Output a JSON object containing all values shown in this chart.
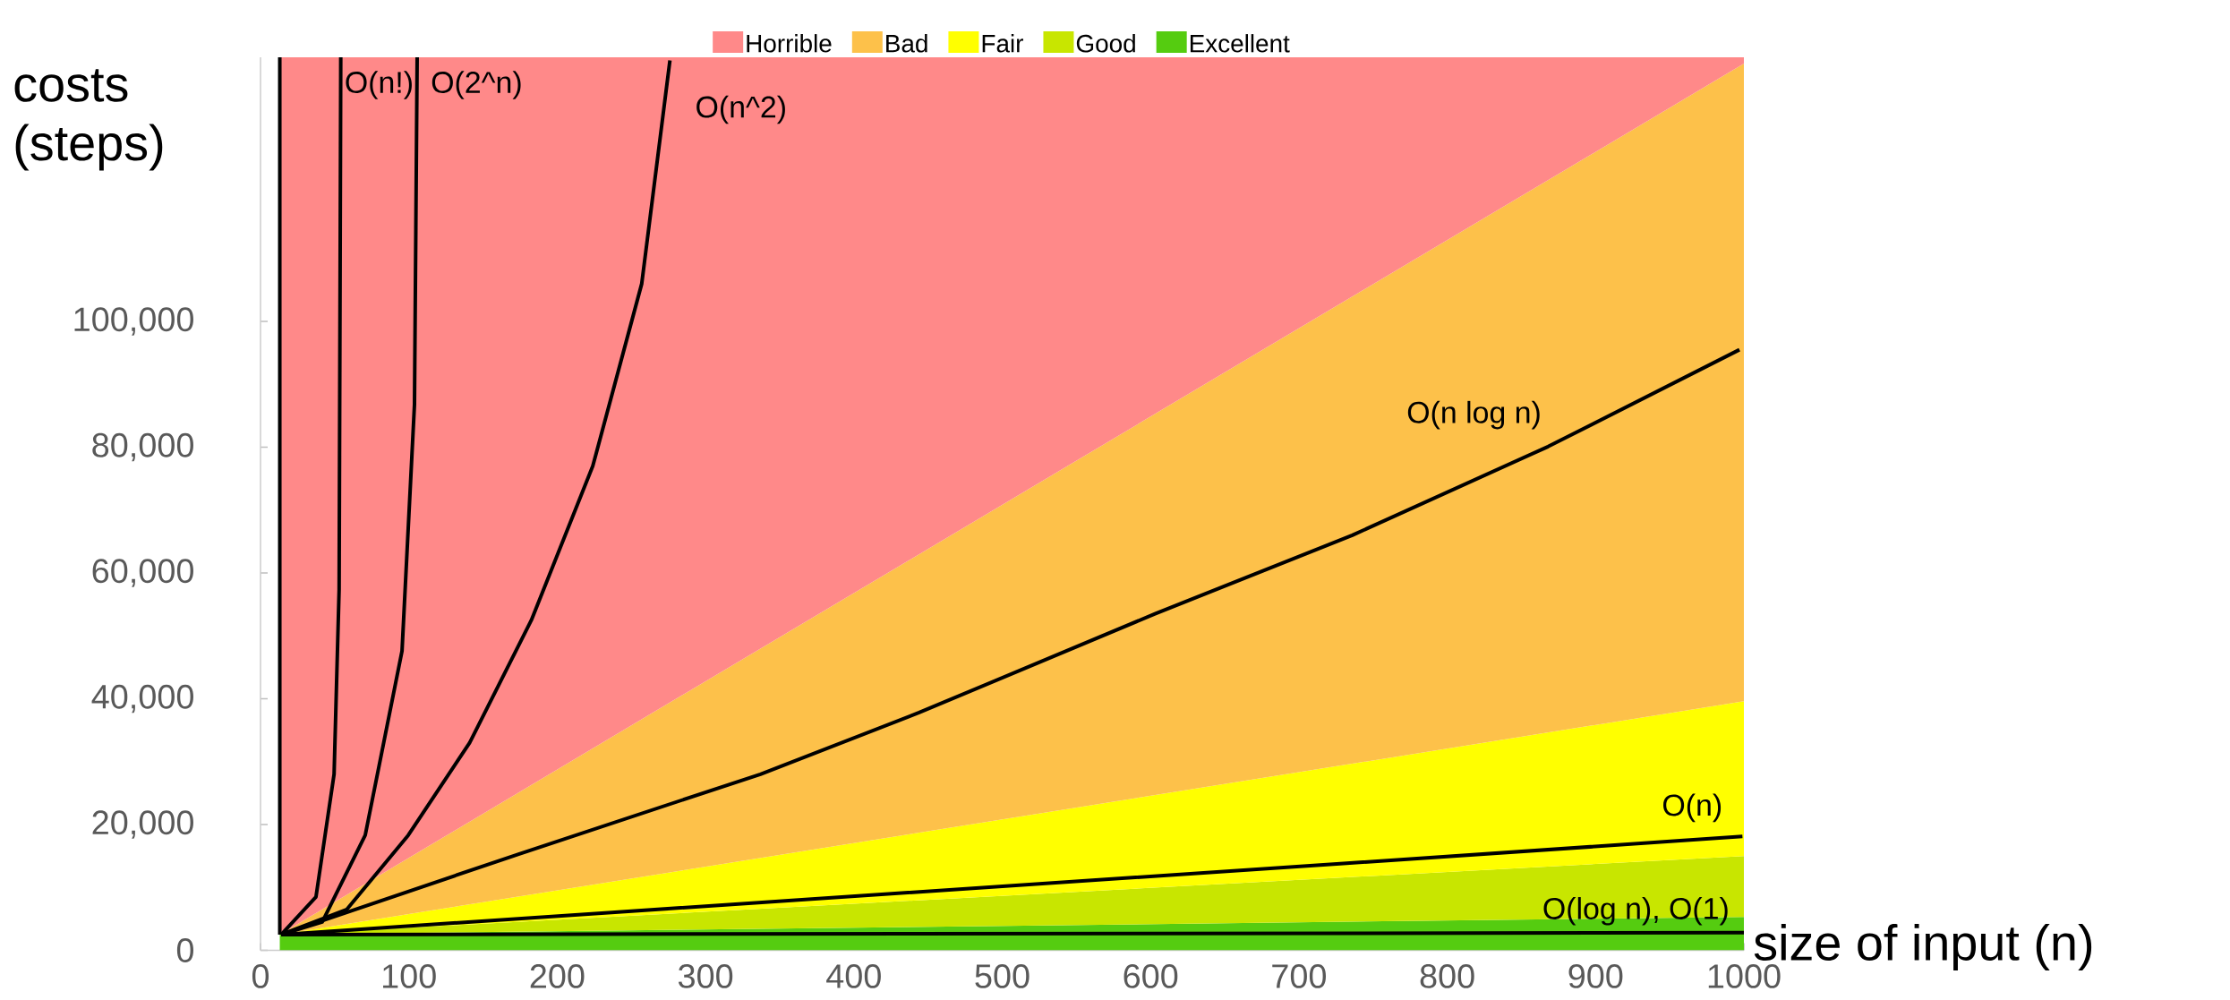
{
  "chart_data": {
    "type": "line",
    "xlabel": "size of input (n)",
    "ylabel": "costs (steps)",
    "xlim": [
      0,
      1000
    ],
    "ylim": [
      0,
      142000
    ],
    "xticks": [
      0,
      100,
      200,
      300,
      400,
      500,
      600,
      700,
      800,
      900,
      1000
    ],
    "yticks": [
      0,
      {
        "value": 20000,
        "label": "20,000"
      },
      {
        "value": 40000,
        "label": "40,000"
      },
      {
        "value": 60000,
        "label": "60,000"
      },
      {
        "value": 80000,
        "label": "80,000"
      },
      {
        "value": 100000,
        "label": "100,000"
      }
    ],
    "legend": "top",
    "marker": "none",
    "grid": false,
    "stacked": true,
    "series": [
      {
        "name": "Excellent",
        "type": "area",
        "color": "#55cc10",
        "x": [
          13,
          1000
        ],
        "values": [
          2500,
          5300
        ]
      },
      {
        "name": "Good",
        "type": "area",
        "color": "#c8e600",
        "x": [
          13,
          1000
        ],
        "values": [
          0,
          9700
        ]
      },
      {
        "name": "Fair",
        "type": "area",
        "color": "#ffff00",
        "x": [
          13,
          1000
        ],
        "values": [
          0,
          24600
        ]
      },
      {
        "name": "Bad",
        "type": "area",
        "color": "#fdc14a",
        "x": [
          13,
          1000
        ],
        "values": [
          0,
          101400
        ]
      },
      {
        "name": "Horrible",
        "type": "area",
        "color": "#ff8989",
        "x": [
          13,
          1000
        ],
        "values": [
          139500,
          1000
        ]
      },
      {
        "color": "#000000",
        "x": [
          13,
          13
        ],
        "values": [
          2500,
          142000
        ]
      },
      {
        "name": "O(n!)",
        "color": "#000000",
        "x": [
          14,
          37.4,
          49.6,
          53,
          54.1
        ],
        "values": [
          2500,
          8500,
          28000,
          57400,
          142000
        ]
      },
      {
        "name": "O(2^n)",
        "color": "#000000",
        "x": [
          14,
          41.6,
          70.6,
          95.4,
          103.8,
          105.6
        ],
        "values": [
          2500,
          4500,
          18300,
          47600,
          86800,
          142000
        ]
      },
      {
        "name": "O(n^2)",
        "color": "#000000",
        "x": [
          14,
          58.2,
          99.6,
          141,
          182.6,
          224,
          257,
          276
        ],
        "values": [
          2500,
          6500,
          18300,
          33000,
          52500,
          77000,
          106000,
          141500
        ]
      },
      {
        "name": "O(n log n)",
        "color": "#000000",
        "x": [
          14,
          174,
          337,
          444,
          603,
          736,
          868,
          997
        ],
        "values": [
          2500,
          15300,
          28000,
          37800,
          53500,
          66000,
          80100,
          95500
        ]
      },
      {
        "name": "O(n)",
        "color": "#000000",
        "x": [
          14,
          730,
          999
        ],
        "values": [
          2500,
          13800,
          18100
        ]
      },
      {
        "name": "O(log n), O(1)",
        "color": "#000000",
        "x": [
          14,
          1000
        ],
        "values": [
          2500,
          2800
        ]
      }
    ]
  }
}
